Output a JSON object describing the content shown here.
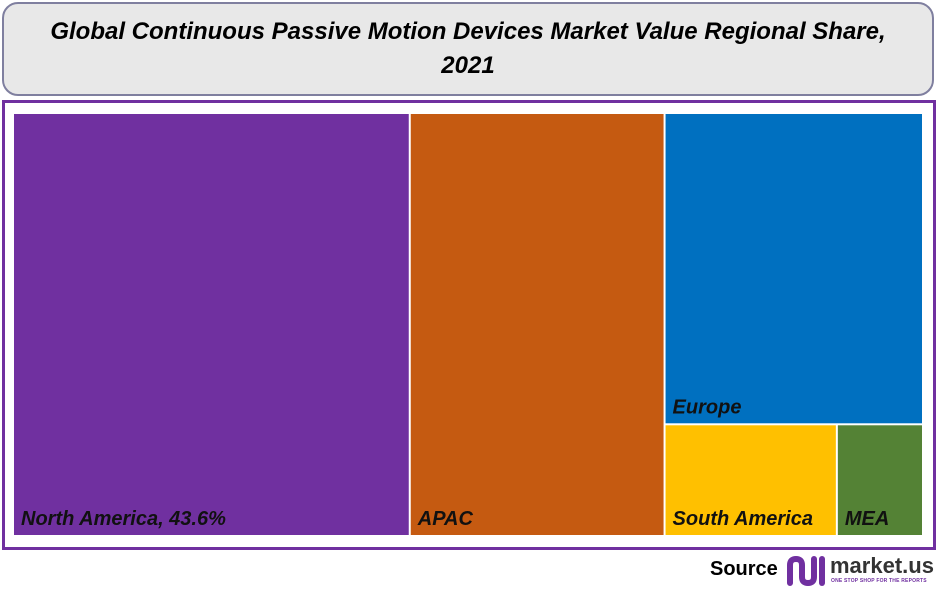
{
  "chart_data": {
    "type": "treemap",
    "title": "Global Continuous Passive Motion Devices Market Value Regional Share, 2021",
    "categories": [
      "North America, 43.6%",
      "APAC",
      "Europe",
      "South America",
      "MEA"
    ],
    "values": [
      43.6,
      28.0,
      20.9,
      5.0,
      2.5
    ],
    "colors": [
      "#7030a0",
      "#c55a11",
      "#0070c0",
      "#ffc000",
      "#548235"
    ]
  },
  "footer": {
    "source": "Source",
    "brand": "market.us",
    "tagline": "ONE STOP SHOP FOR THE REPORTS"
  }
}
